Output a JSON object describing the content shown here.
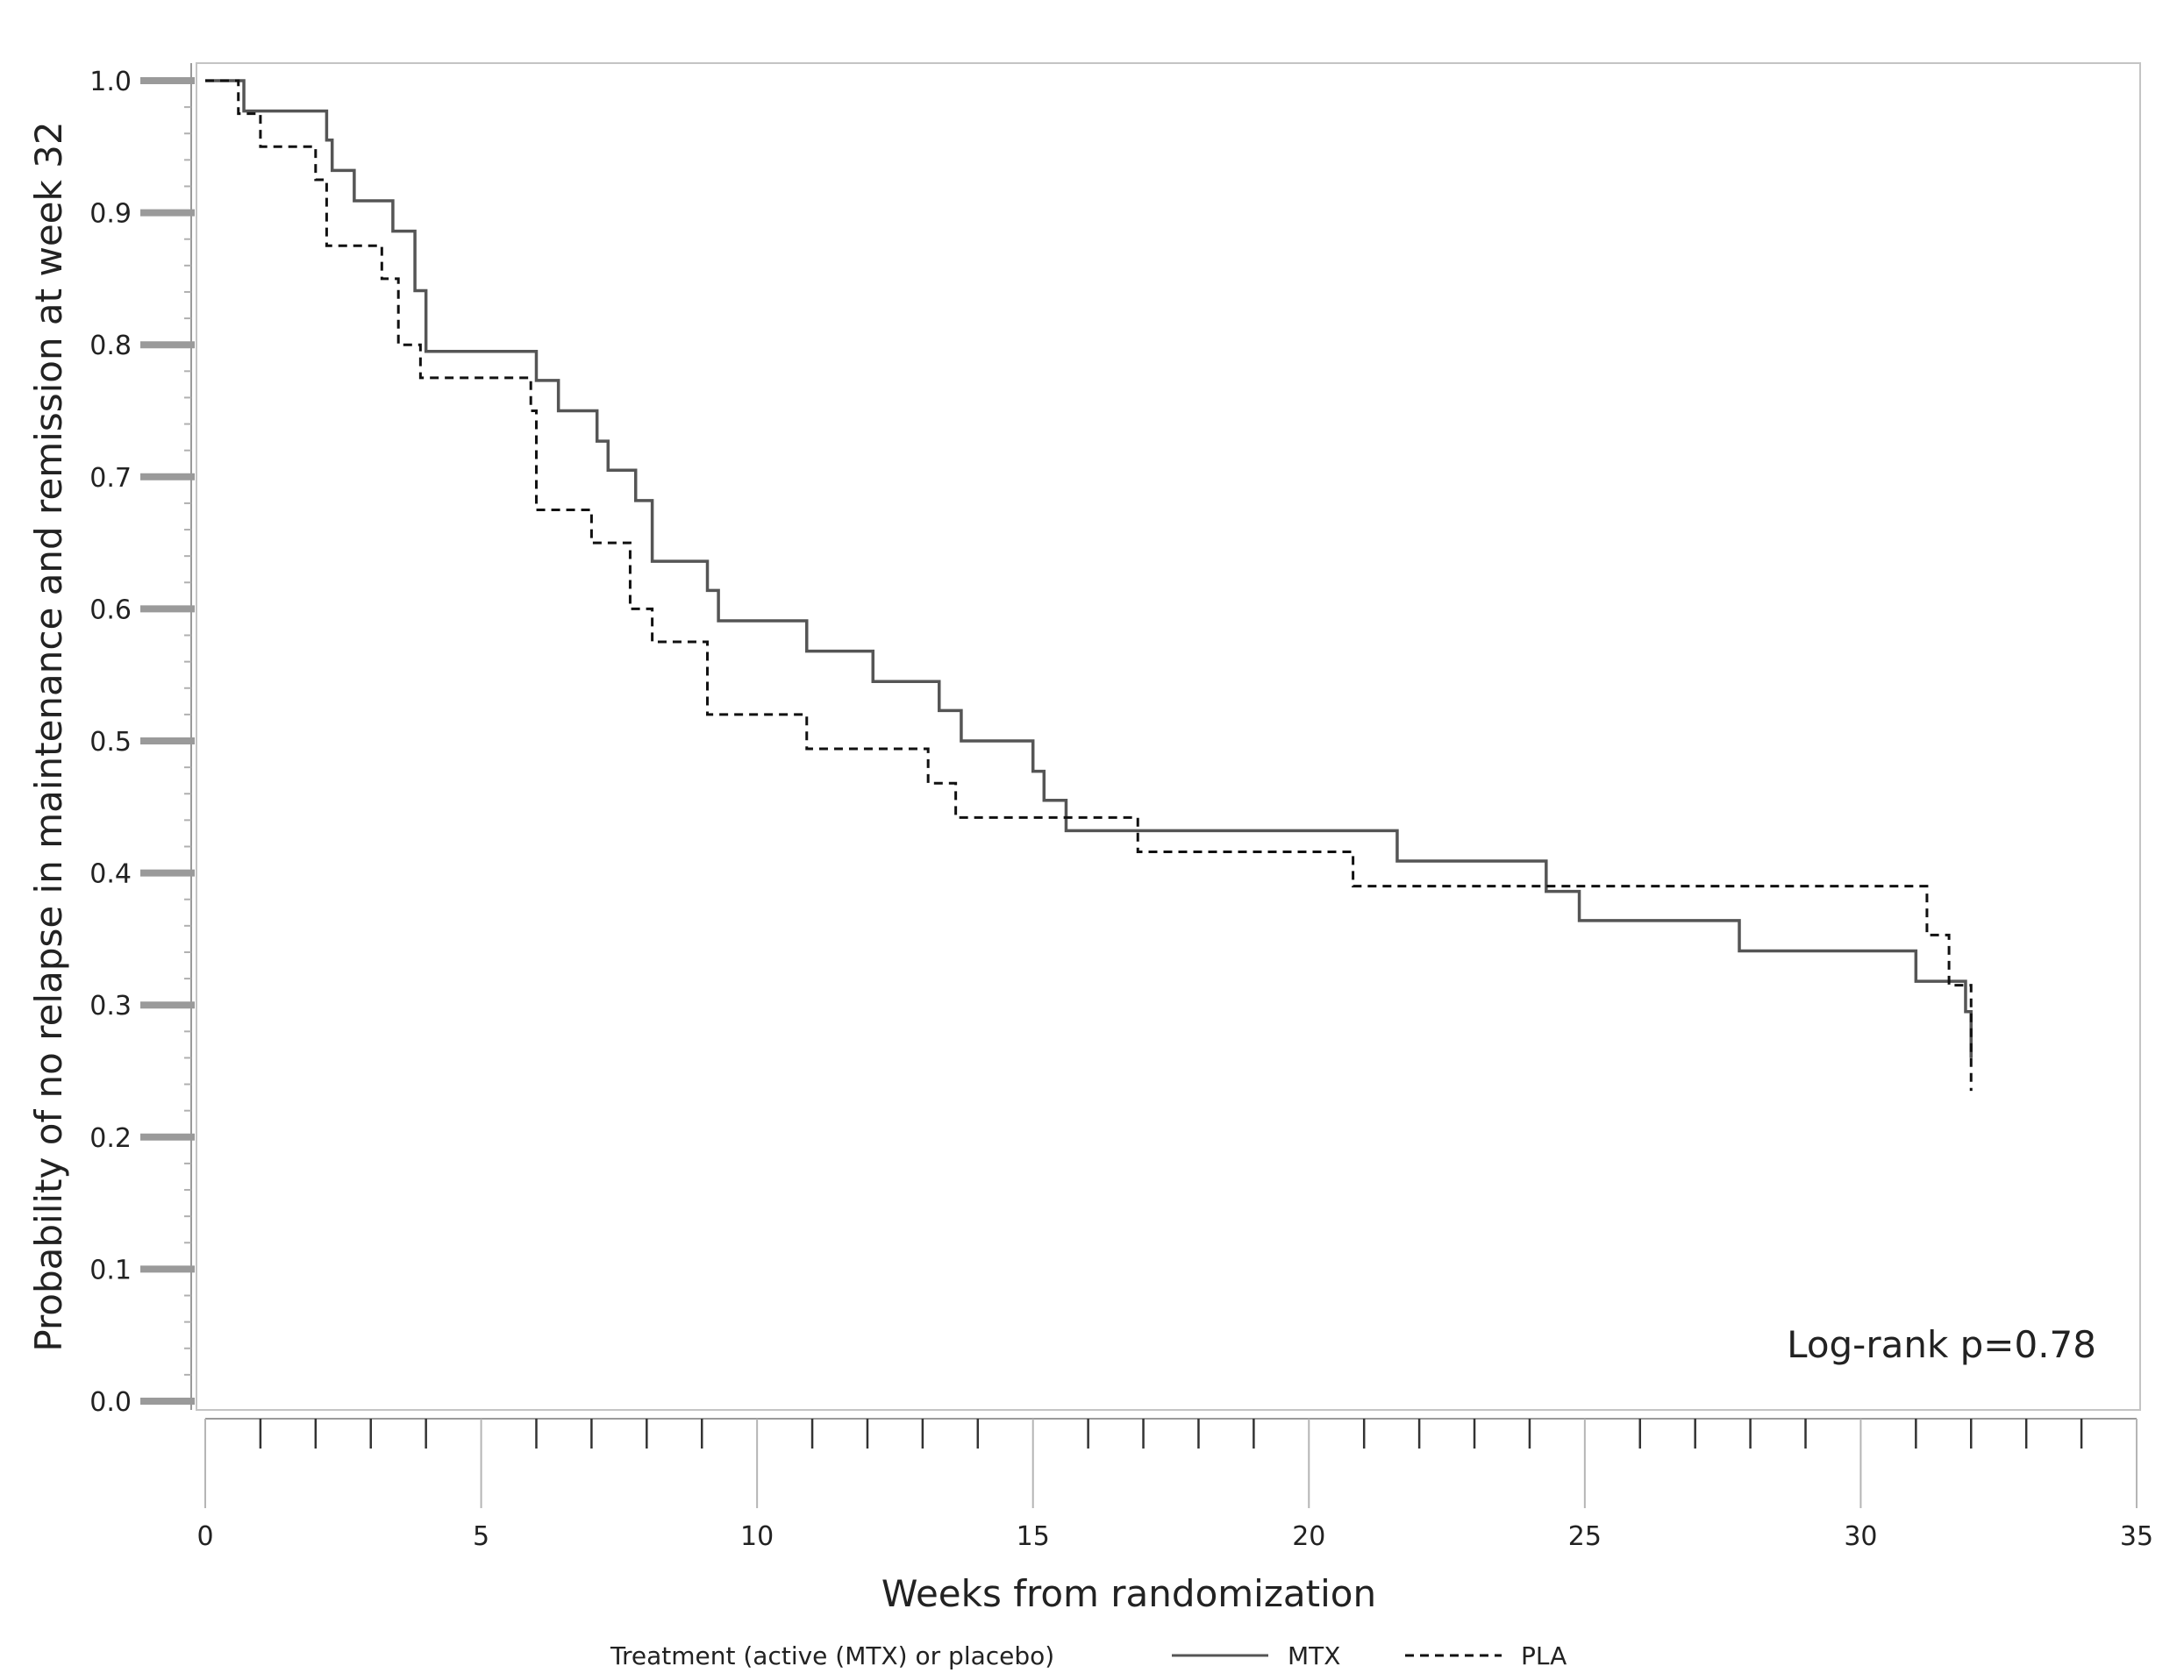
{
  "chart_data": {
    "type": "line",
    "step": true,
    "title": "",
    "xlabel": "Weeks from randomization",
    "ylabel": "Probability of no relapse in maintenance and remission at week 32",
    "xlim": [
      0,
      35
    ],
    "ylim": [
      0.0,
      1.0
    ],
    "x_ticks": [
      0,
      5,
      10,
      15,
      20,
      25,
      30,
      35
    ],
    "x_tick_labels": [
      "0",
      "5",
      "10",
      "15",
      "20",
      "25",
      "30",
      "35"
    ],
    "x_minor_step": 1,
    "y_ticks": [
      0.0,
      0.1,
      0.2,
      0.3,
      0.4,
      0.5,
      0.6,
      0.7,
      0.8,
      0.9,
      1.0
    ],
    "y_tick_labels": [
      "0.0",
      "0.1",
      "0.2",
      "0.3",
      "0.4",
      "0.5",
      "0.6",
      "0.7",
      "0.8",
      "0.9",
      "1.0"
    ],
    "grid": false,
    "annotation": "Log-rank p=0.78",
    "legend": {
      "title": "Treatment (active (MTX) or placebo)",
      "position": "bottom"
    },
    "series": [
      {
        "name": "MTX",
        "line_style": "solid",
        "color": "#555555",
        "x": [
          0,
          0.7,
          2.2,
          2.3,
          2.7,
          3.4,
          3.8,
          4.0,
          6.0,
          6.4,
          7.1,
          7.3,
          7.8,
          8.1,
          9.1,
          9.3,
          10.9,
          12.1,
          13.3,
          13.7,
          15.0,
          15.2,
          15.6,
          21.6,
          24.3,
          24.9,
          27.8,
          31.0,
          31.9,
          32.0
        ],
        "y": [
          1.0,
          0.977,
          0.955,
          0.932,
          0.909,
          0.886,
          0.841,
          0.795,
          0.773,
          0.75,
          0.727,
          0.705,
          0.682,
          0.636,
          0.614,
          0.591,
          0.568,
          0.545,
          0.523,
          0.5,
          0.477,
          0.455,
          0.432,
          0.409,
          0.386,
          0.364,
          0.341,
          0.318,
          0.295,
          0.26
        ]
      },
      {
        "name": "PLA",
        "line_style": "dashed",
        "color": "#111111",
        "x": [
          0,
          0.6,
          1.0,
          2.0,
          2.2,
          3.2,
          3.5,
          3.9,
          5.9,
          6.0,
          7.0,
          7.7,
          8.1,
          9.1,
          10.9,
          13.1,
          13.6,
          16.9,
          20.8,
          31.2,
          31.6,
          32.0
        ],
        "y": [
          1.0,
          0.975,
          0.95,
          0.925,
          0.875,
          0.85,
          0.8,
          0.775,
          0.75,
          0.675,
          0.65,
          0.6,
          0.575,
          0.52,
          0.494,
          0.468,
          0.442,
          0.416,
          0.39,
          0.353,
          0.315,
          0.235
        ]
      }
    ]
  }
}
